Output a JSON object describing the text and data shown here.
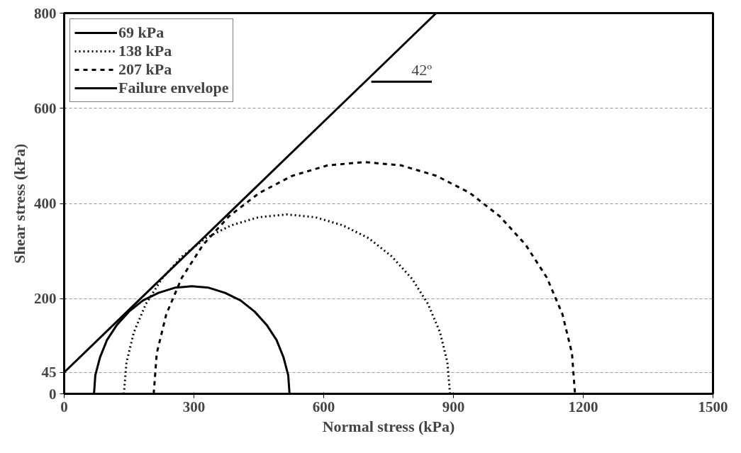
{
  "chart_data": {
    "type": "line",
    "xlabel": "Normal stress (kPa)",
    "ylabel": "Shear stress (kPa)",
    "xlim": [
      0,
      1500
    ],
    "xticks": [
      0,
      300,
      600,
      900,
      1200,
      1500
    ],
    "ylim": [
      0,
      800
    ],
    "yticks": [
      0,
      45,
      200,
      400,
      600,
      800
    ],
    "grid": "y",
    "legend": "top left",
    "marker": "none",
    "series": [
      {
        "name": "69 kPa",
        "color": "#000000",
        "line_style": "solid",
        "x": [
          69,
          72,
          83,
          99,
          122,
          150,
          182,
          218,
          256,
          295,
          334,
          372,
          408,
          440,
          468,
          491,
          507,
          518,
          521
        ],
        "values": [
          0,
          39,
          77,
          113,
          145,
          173,
          196,
          212,
          223,
          226,
          223,
          212,
          196,
          173,
          145,
          113,
          77,
          39,
          0
        ]
      },
      {
        "name": "138 kPa",
        "color": "#000000",
        "line_style": "dotted",
        "x": [
          138,
          144,
          161,
          189,
          226,
          273,
          327,
          386,
          449,
          515,
          581,
          644,
          704,
          757,
          804,
          841,
          869,
          886,
          892
        ],
        "values": [
          0,
          66,
          129,
          189,
          242,
          289,
          327,
          354,
          371,
          377,
          371,
          354,
          327,
          289,
          242,
          189,
          129,
          66,
          0
        ]
      },
      {
        "name": "207 kPa",
        "color": "#000000",
        "line_style": "dashed",
        "x": [
          207,
          214,
          236,
          272,
          321,
          381,
          451,
          527,
          609,
          694,
          779,
          861,
          938,
          1007,
          1067,
          1116,
          1152,
          1174,
          1181
        ],
        "values": [
          0,
          85,
          167,
          244,
          313,
          373,
          422,
          458,
          480,
          487,
          480,
          458,
          422,
          373,
          313,
          244,
          167,
          85,
          0
        ]
      },
      {
        "name": "Failure envelope",
        "color": "#000000",
        "line_style": "solid",
        "x": [
          0,
          860
        ],
        "values": [
          45,
          800
        ]
      },
      {
        "color": "#000000",
        "line_style": "solid",
        "x": [
          710,
          850
        ],
        "values": [
          656,
          656
        ]
      }
    ],
    "annotations": [
      "42º"
    ]
  }
}
